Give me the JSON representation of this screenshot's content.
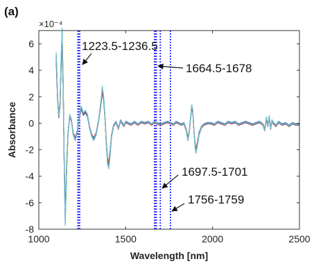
{
  "panel_label": "(a)",
  "exponent_label": "×10⁻⁴",
  "chart_data": {
    "type": "line",
    "xlabel": "Wavelength [nm]",
    "ylabel": "Absorbance",
    "xlim": [
      1000,
      2500
    ],
    "ylim": [
      -8,
      7
    ],
    "xticks": [
      "1000",
      "1500",
      "2000",
      "2500"
    ],
    "yticks": [
      "-8",
      "-6",
      "-4",
      "-2",
      "0",
      "2",
      "4",
      "6"
    ],
    "y_scale_factor": "1e-4",
    "grid": false,
    "legend": "none",
    "series_colors": [
      "#4bb0d8",
      "#e0a030",
      "#d9482b",
      "#7a3fa0",
      "#73b045",
      "#2f7fbf",
      "#a03040",
      "#6fc5d5"
    ],
    "spectrum": {
      "x": [
        1100,
        1108,
        1115,
        1122,
        1128,
        1134,
        1140,
        1146,
        1152,
        1160,
        1168,
        1178,
        1188,
        1198,
        1210,
        1222,
        1232,
        1244,
        1256,
        1268,
        1280,
        1292,
        1304,
        1316,
        1330,
        1344,
        1356,
        1366,
        1374,
        1381,
        1388,
        1395,
        1402,
        1410,
        1418,
        1430,
        1444,
        1458,
        1470,
        1480,
        1490,
        1500,
        1515,
        1530,
        1550,
        1570,
        1590,
        1610,
        1630,
        1650,
        1665,
        1680,
        1700,
        1720,
        1740,
        1760,
        1775,
        1790,
        1805,
        1820,
        1835,
        1848,
        1858,
        1866,
        1874,
        1880,
        1886,
        1892,
        1898,
        1904,
        1912,
        1922,
        1936,
        1950,
        1970,
        1990,
        2010,
        2030,
        2050,
        2070,
        2090,
        2110,
        2130,
        2150,
        2170,
        2190,
        2210,
        2230,
        2250,
        2270,
        2290,
        2300,
        2310,
        2318,
        2326,
        2334,
        2342,
        2350,
        2365,
        2380,
        2400,
        2420,
        2440,
        2460,
        2480,
        2500
      ],
      "y": [
        5.0,
        2.0,
        0.5,
        1.5,
        4.5,
        6.7,
        3.0,
        -3.0,
        -7.2,
        -3.5,
        -0.8,
        0.6,
        0.2,
        -0.8,
        -1.2,
        -0.6,
        0.4,
        1.2,
        0.7,
        0.9,
        0.6,
        -0.3,
        -0.9,
        -1.2,
        -0.8,
        0.2,
        1.4,
        2.6,
        1.8,
        0.4,
        -1.4,
        -2.8,
        -3.2,
        -2.3,
        -1.0,
        -0.2,
        0.1,
        -0.4,
        0.2,
        0.0,
        -0.2,
        0.1,
        0.0,
        -0.1,
        0.1,
        -0.1,
        0.1,
        0.0,
        0.1,
        -0.1,
        0.1,
        0.0,
        -0.1,
        0.0,
        0.1,
        0.0,
        -0.1,
        0.1,
        0.0,
        -0.1,
        0.0,
        -0.5,
        -1.2,
        -0.6,
        0.5,
        1.3,
        0.9,
        -0.4,
        -1.5,
        -2.1,
        -1.6,
        -0.8,
        -0.3,
        -0.1,
        0.0,
        0.0,
        -0.1,
        0.1,
        0.0,
        -0.1,
        0.1,
        0.0,
        0.1,
        -0.1,
        0.0,
        0.1,
        0.0,
        -0.1,
        0.0,
        0.1,
        -0.1,
        -0.5,
        0.4,
        -0.2,
        0.5,
        -0.4,
        0.2,
        0.0,
        -0.2,
        0.1,
        -0.1,
        0.0,
        -0.2,
        0.0,
        -0.1,
        -0.1
      ]
    },
    "bands": [
      {
        "from": 1223.5,
        "to": 1236.5
      },
      {
        "from": 1664.5,
        "to": 1678
      },
      {
        "from": 1697.5,
        "to": 1701
      },
      {
        "from": 1756,
        "to": 1759
      }
    ],
    "annotations": [
      "1223.5-1236.5",
      "1664.5-1678",
      "1697.5-1701",
      "1756-1759"
    ]
  }
}
